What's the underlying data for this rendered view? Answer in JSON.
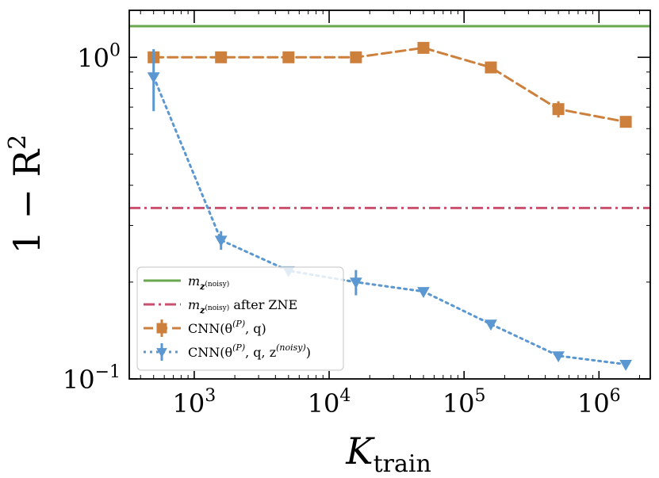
{
  "chart_data": {
    "type": "line",
    "xscale": "log",
    "yscale": "log",
    "xlim": [
      330,
      2400000
    ],
    "ylim": [
      0.1,
      1.4
    ],
    "xlabel": "K",
    "xlabel_sub": "train",
    "ylabel": "1 − R",
    "ylabel_sup": "2",
    "x_ticks": [
      {
        "value": 1000,
        "base": "10",
        "exp": "3"
      },
      {
        "value": 10000,
        "base": "10",
        "exp": "4"
      },
      {
        "value": 100000,
        "base": "10",
        "exp": "5"
      },
      {
        "value": 1000000,
        "base": "10",
        "exp": "6"
      }
    ],
    "y_ticks": [
      {
        "value": 1.0,
        "base": "10",
        "exp": "0"
      },
      {
        "value": 0.1,
        "base": "10",
        "exp": "−1"
      }
    ],
    "hlines": [
      {
        "name": "m_z(noisy)",
        "y": 1.25,
        "color": "#6aa84f",
        "dash": "solid"
      },
      {
        "name": "m_z(noisy) after ZNE",
        "y": 0.34,
        "color": "#c9506e",
        "dash": "dashdot"
      }
    ],
    "series": [
      {
        "name": "CNN(θ(P), q)",
        "color": "#cd7f3c",
        "marker": "square",
        "dash": "dashed",
        "x": [
          500,
          1580,
          5000,
          15800,
          50000,
          158000,
          500000,
          1580000
        ],
        "y": [
          1.0,
          1.0,
          1.0,
          1.0,
          1.07,
          0.93,
          0.69,
          0.63
        ],
        "yerr": [
          0.02,
          0.01,
          0.01,
          0.01,
          0.015,
          0.025,
          0.04,
          0.02
        ]
      },
      {
        "name": "CNN(θ(P), q, z(noisy))",
        "color": "#5b97d1",
        "marker": "triangle-down",
        "dash": "dotted",
        "x": [
          500,
          1580,
          5000,
          15800,
          50000,
          158000,
          500000,
          1580000
        ],
        "y": [
          0.87,
          0.27,
          0.217,
          0.2,
          0.187,
          0.148,
          0.118,
          0.111
        ],
        "yerr": [
          0.19,
          0.018,
          0.005,
          0.018,
          0.005,
          0.004,
          0.003,
          0.003
        ]
      }
    ],
    "legend": {
      "placement": "bottom-left",
      "entries": [
        {
          "main": "m",
          "sub": "z",
          "subsup": "(noisy)",
          "tail": ""
        },
        {
          "main": "m",
          "sub": "z",
          "subsup": "(noisy)",
          "tail": " after ZNE"
        },
        {
          "main": "CNN(θ",
          "sup": "(P)",
          "tail": ", q)"
        },
        {
          "main": "CNN(θ",
          "sup": "(P)",
          "tail": ", q, z",
          "sup2": "(noisy)",
          "tail2": ")"
        }
      ]
    }
  }
}
